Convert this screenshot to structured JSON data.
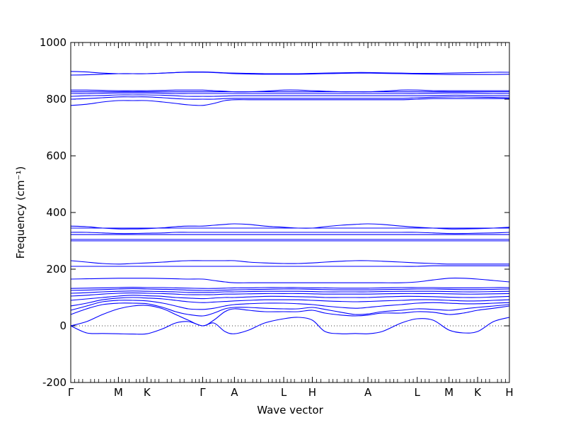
{
  "chart_data": {
    "type": "line",
    "title": "",
    "xlabel": "Wave vector",
    "ylabel": "Frequency (cm⁻¹)",
    "ylim": [
      -200,
      1000
    ],
    "xlim": [
      0,
      13.8
    ],
    "yticks": [
      -200,
      0,
      200,
      400,
      600,
      800,
      1000
    ],
    "grid": false,
    "zero_line": {
      "y": 0,
      "style": "dotted"
    },
    "color": "#0000ff",
    "high_symmetry_points": [
      {
        "label": "Γ",
        "x": 0
      },
      {
        "label": "M",
        "x": 1.5
      },
      {
        "label": "K",
        "x": 2.4
      },
      {
        "label": "Γ",
        "x": 4.15
      },
      {
        "label": "A",
        "x": 5.15
      },
      {
        "label": "L",
        "x": 6.7
      },
      {
        "label": "H",
        "x": 7.6
      },
      {
        "label": "A",
        "x": 9.35
      },
      {
        "label": "L",
        "x": 10.9
      },
      {
        "label": "M",
        "x": 11.9
      },
      {
        "label": "K",
        "x": 12.8
      },
      {
        "label": "H",
        "x": 13.8
      }
    ],
    "x": [
      0,
      0.5,
      1.0,
      1.5,
      1.95,
      2.4,
      2.9,
      3.3,
      3.7,
      4.15,
      4.5,
      4.85,
      5.15,
      5.6,
      6.1,
      6.7,
      7.15,
      7.6,
      8.0,
      8.5,
      8.95,
      9.35,
      9.8,
      10.4,
      10.9,
      11.4,
      11.9,
      12.35,
      12.8,
      13.3,
      13.8
    ],
    "series": [
      {
        "values": [
          0,
          -25,
          -27,
          -28,
          -29,
          -28,
          -10,
          10,
          15,
          0,
          10,
          -20,
          -28,
          -15,
          10,
          25,
          30,
          20,
          -20,
          -28,
          -27,
          -28,
          -20,
          10,
          25,
          20,
          -15,
          -25,
          -20,
          15,
          30
        ]
      },
      {
        "values": [
          0,
          15,
          40,
          60,
          70,
          72,
          60,
          40,
          20,
          0,
          20,
          50,
          60,
          55,
          50,
          50,
          50,
          55,
          45,
          38,
          35,
          38,
          45,
          45,
          50,
          48,
          40,
          45,
          55,
          62,
          70
        ]
      },
      {
        "values": [
          40,
          60,
          75,
          80,
          80,
          78,
          65,
          50,
          40,
          35,
          45,
          60,
          65,
          65,
          62,
          60,
          60,
          65,
          58,
          48,
          40,
          42,
          50,
          55,
          60,
          58,
          55,
          60,
          65,
          70,
          75
        ]
      },
      {
        "values": [
          55,
          70,
          85,
          90,
          90,
          88,
          80,
          70,
          60,
          58,
          62,
          70,
          75,
          78,
          80,
          80,
          78,
          75,
          70,
          65,
          62,
          65,
          70,
          75,
          80,
          82,
          80,
          78,
          78,
          80,
          82
        ]
      },
      {
        "values": [
          70,
          80,
          92,
          98,
          100,
          98,
          95,
          90,
          85,
          82,
          84,
          86,
          88,
          90,
          92,
          92,
          92,
          90,
          88,
          86,
          85,
          86,
          88,
          90,
          92,
          92,
          90,
          88,
          88,
          90,
          92
        ]
      },
      {
        "values": [
          90,
          95,
          100,
          105,
          108,
          106,
          104,
          100,
          98,
          96,
          98,
          100,
          100,
          102,
          104,
          104,
          103,
          102,
          100,
          100,
          100,
          100,
          102,
          104,
          104,
          103,
          101,
          100,
          100,
          102,
          104
        ]
      },
      {
        "values": [
          105,
          108,
          112,
          115,
          116,
          115,
          114,
          112,
          110,
          110,
          110,
          112,
          112,
          113,
          114,
          114,
          114,
          113,
          112,
          112,
          112,
          112,
          113,
          114,
          114,
          114,
          113,
          112,
          112,
          113,
          114
        ]
      },
      {
        "values": [
          115,
          117,
          120,
          122,
          123,
          122,
          121,
          120,
          118,
          118,
          118,
          120,
          120,
          121,
          122,
          122,
          122,
          121,
          120,
          120,
          120,
          120,
          121,
          122,
          122,
          122,
          121,
          120,
          120,
          121,
          122
        ]
      },
      {
        "values": [
          125,
          126,
          128,
          130,
          131,
          130,
          129,
          128,
          126,
          125,
          125,
          126,
          127,
          128,
          129,
          130,
          130,
          129,
          128,
          127,
          127,
          127,
          128,
          129,
          130,
          130,
          129,
          128,
          128,
          129,
          130
        ]
      },
      {
        "values": [
          132,
          133,
          134,
          135,
          136,
          135,
          135,
          134,
          133,
          132,
          132,
          133,
          134,
          134,
          135,
          135,
          135,
          134,
          134,
          133,
          133,
          133,
          134,
          135,
          135,
          135,
          134,
          134,
          134,
          135,
          135
        ]
      },
      {
        "values": [
          165,
          166,
          167,
          168,
          168,
          168,
          167,
          166,
          165,
          165,
          160,
          155,
          152,
          152,
          152,
          152,
          152,
          152,
          152,
          152,
          152,
          152,
          152,
          152,
          155,
          162,
          168,
          168,
          165,
          160,
          155
        ]
      },
      {
        "values": [
          210,
          210,
          210,
          210,
          210,
          210,
          210,
          210,
          210,
          210,
          210,
          210,
          210,
          210,
          210,
          210,
          210,
          210,
          210,
          210,
          210,
          210,
          210,
          210,
          210,
          212,
          212,
          212,
          212,
          212,
          212
        ]
      },
      {
        "values": [
          230,
          225,
          220,
          218,
          220,
          222,
          225,
          228,
          230,
          230,
          230,
          230,
          230,
          225,
          222,
          220,
          220,
          222,
          225,
          228,
          230,
          230,
          228,
          225,
          222,
          220,
          218,
          218,
          218,
          218,
          218
        ]
      },
      {
        "values": [
          300,
          300,
          300,
          300,
          300,
          300,
          300,
          300,
          300,
          300,
          300,
          300,
          300,
          300,
          300,
          300,
          300,
          300,
          300,
          300,
          300,
          300,
          300,
          300,
          300,
          300,
          300,
          300,
          300,
          300,
          300
        ]
      },
      {
        "values": [
          305,
          305,
          305,
          305,
          305,
          305,
          305,
          305,
          305,
          305,
          305,
          305,
          305,
          305,
          305,
          305,
          305,
          305,
          305,
          305,
          305,
          305,
          305,
          305,
          305,
          305,
          305,
          305,
          305,
          305,
          305
        ]
      },
      {
        "values": [
          322,
          322,
          322,
          322,
          322,
          322,
          322,
          322,
          322,
          322,
          322,
          322,
          322,
          322,
          322,
          322,
          322,
          322,
          322,
          322,
          322,
          322,
          322,
          322,
          322,
          322,
          322,
          322,
          322,
          322,
          322
        ]
      },
      {
        "values": [
          330,
          330,
          328,
          326,
          326,
          327,
          328,
          330,
          330,
          330,
          330,
          330,
          330,
          330,
          330,
          330,
          330,
          330,
          330,
          330,
          330,
          330,
          330,
          330,
          330,
          328,
          326,
          326,
          327,
          328,
          330
        ]
      },
      {
        "values": [
          345,
          345,
          345,
          345,
          345,
          345,
          345,
          345,
          345,
          345,
          345,
          345,
          345,
          345,
          345,
          345,
          345,
          345,
          345,
          345,
          345,
          345,
          345,
          345,
          345,
          345,
          345,
          345,
          345,
          345,
          345
        ]
      },
      {
        "values": [
          352,
          350,
          345,
          342,
          342,
          343,
          346,
          350,
          352,
          352,
          355,
          358,
          360,
          358,
          352,
          348,
          345,
          345,
          350,
          355,
          358,
          360,
          358,
          352,
          348,
          345,
          342,
          342,
          343,
          345,
          348
        ]
      },
      {
        "values": [
          778,
          782,
          790,
          795,
          795,
          795,
          790,
          785,
          780,
          778,
          785,
          795,
          798,
          798,
          798,
          798,
          798,
          798,
          798,
          798,
          798,
          798,
          798,
          798,
          800,
          802,
          802,
          802,
          802,
          802,
          802
        ]
      },
      {
        "values": [
          800,
          802,
          805,
          808,
          808,
          808,
          805,
          802,
          800,
          800,
          800,
          802,
          803,
          803,
          803,
          803,
          803,
          803,
          803,
          803,
          803,
          803,
          803,
          803,
          805,
          807,
          808,
          808,
          807,
          806,
          805
        ]
      },
      {
        "values": [
          810,
          812,
          813,
          815,
          815,
          815,
          814,
          812,
          810,
          810,
          810,
          811,
          812,
          812,
          812,
          812,
          812,
          812,
          812,
          812,
          812,
          812,
          812,
          812,
          812,
          813,
          814,
          814,
          813,
          812,
          812
        ]
      },
      {
        "values": [
          820,
          820,
          821,
          822,
          822,
          822,
          821,
          820,
          820,
          820,
          820,
          820,
          820,
          820,
          820,
          820,
          820,
          820,
          820,
          820,
          820,
          820,
          820,
          820,
          820,
          821,
          822,
          822,
          821,
          820,
          820
        ]
      },
      {
        "values": [
          826,
          826,
          826,
          826,
          826,
          826,
          826,
          826,
          826,
          826,
          826,
          826,
          826,
          826,
          826,
          826,
          826,
          826,
          826,
          826,
          826,
          826,
          826,
          826,
          826,
          826,
          826,
          826,
          826,
          826,
          826
        ]
      },
      {
        "values": [
          832,
          832,
          831,
          830,
          830,
          830,
          831,
          832,
          832,
          832,
          830,
          828,
          826,
          826,
          828,
          832,
          832,
          830,
          828,
          826,
          826,
          826,
          828,
          832,
          832,
          830,
          830,
          830,
          830,
          830,
          830
        ]
      },
      {
        "values": [
          885,
          886,
          888,
          890,
          890,
          890,
          892,
          894,
          895,
          895,
          894,
          892,
          890,
          889,
          888,
          888,
          888,
          889,
          890,
          891,
          892,
          892,
          891,
          890,
          889,
          888,
          887,
          887,
          887,
          887,
          888
        ]
      },
      {
        "values": [
          898,
          896,
          892,
          890,
          890,
          890,
          892,
          894,
          896,
          896,
          895,
          893,
          892,
          891,
          890,
          890,
          890,
          891,
          892,
          893,
          894,
          894,
          893,
          892,
          891,
          891,
          892,
          893,
          894,
          895,
          895
        ]
      }
    ]
  }
}
